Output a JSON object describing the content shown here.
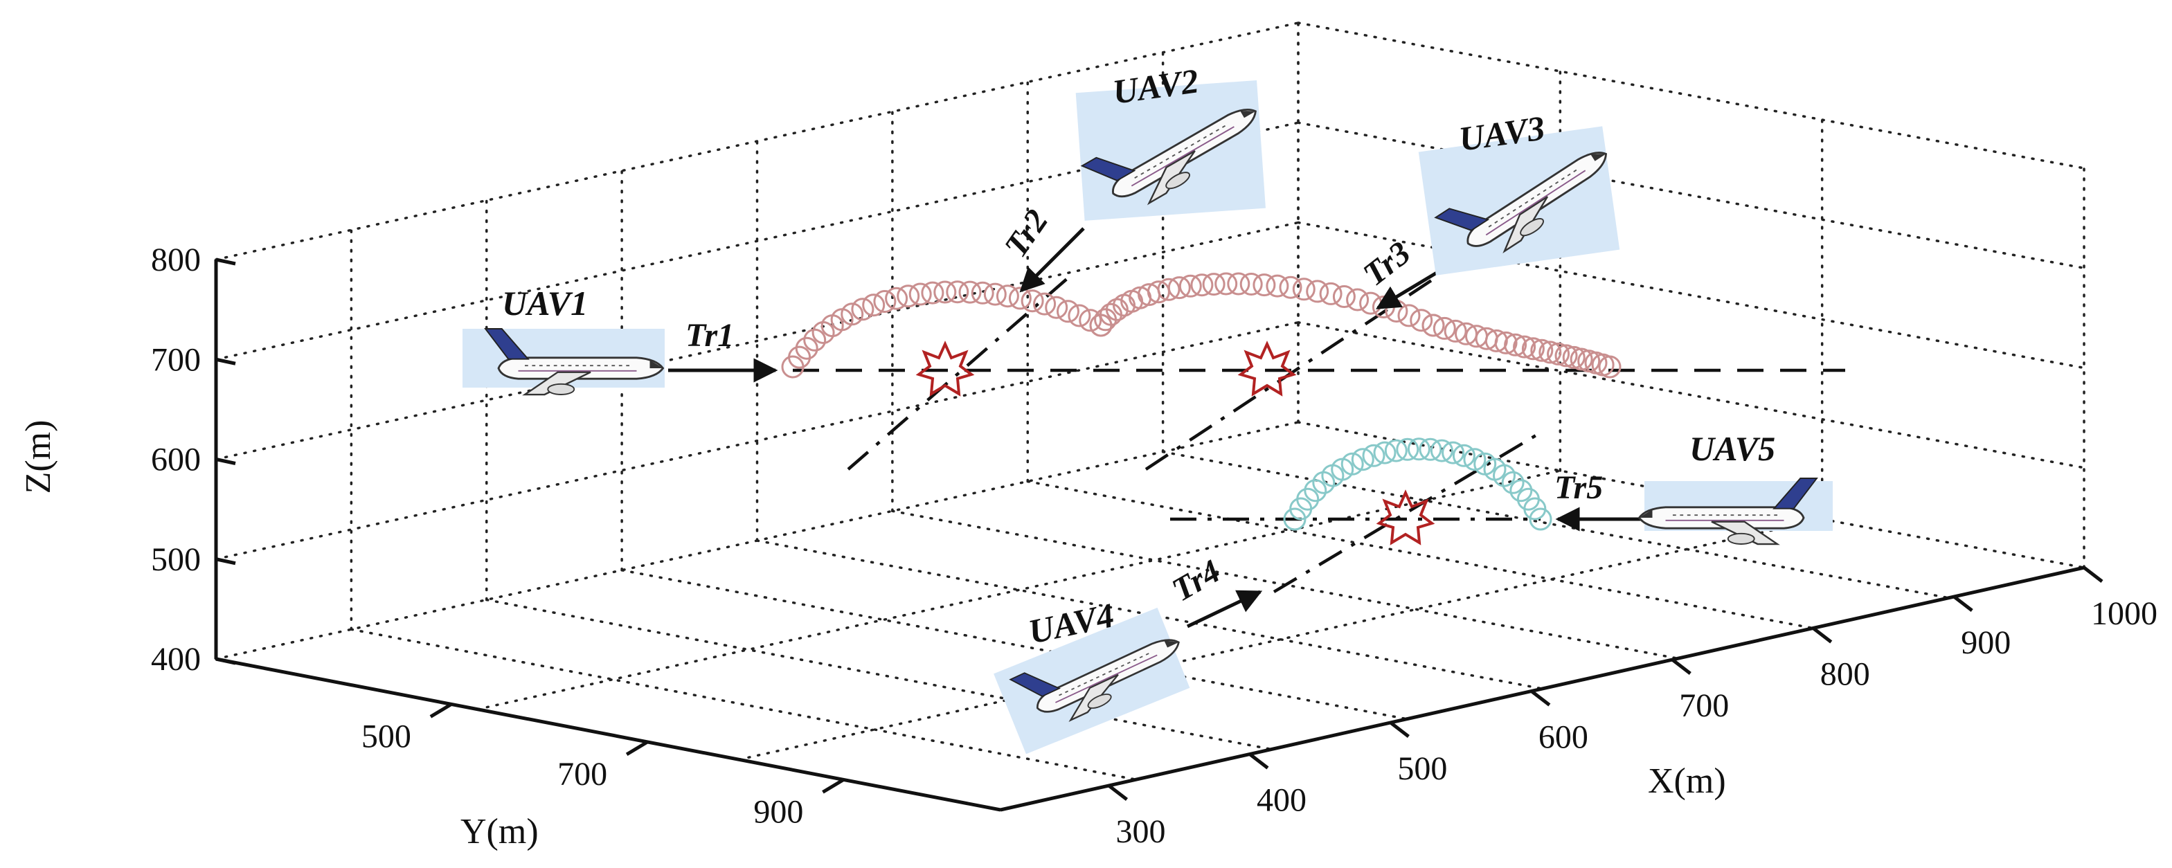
{
  "axes": {
    "z_label": "Z(m)",
    "y_label": "Y(m)",
    "x_label": "X(m)",
    "z_ticks": [
      "800",
      "700",
      "600",
      "500",
      "400"
    ],
    "y_ticks": [
      "500",
      "700",
      "900"
    ],
    "x_ticks": [
      "300",
      "400",
      "500",
      "600",
      "700",
      "800",
      "900",
      "1000"
    ]
  },
  "uavs": [
    {
      "label": "UAV1"
    },
    {
      "label": "UAV2"
    },
    {
      "label": "UAV3"
    },
    {
      "label": "UAV4"
    },
    {
      "label": "UAV5"
    }
  ],
  "trajectories": [
    {
      "label": "Tr1"
    },
    {
      "label": "Tr2"
    },
    {
      "label": "Tr3"
    },
    {
      "label": "Tr4"
    },
    {
      "label": "Tr5"
    }
  ],
  "colors": {
    "upper_circles": "#c98f8f",
    "lower_circles": "#88c9c9",
    "conflict_star": "#b22222",
    "plane_background": "#d6e7f7",
    "tail": "#2f3f8f"
  },
  "icons": {
    "aircraft": "airplane-icon",
    "conflict": "conflict-star-icon"
  }
}
